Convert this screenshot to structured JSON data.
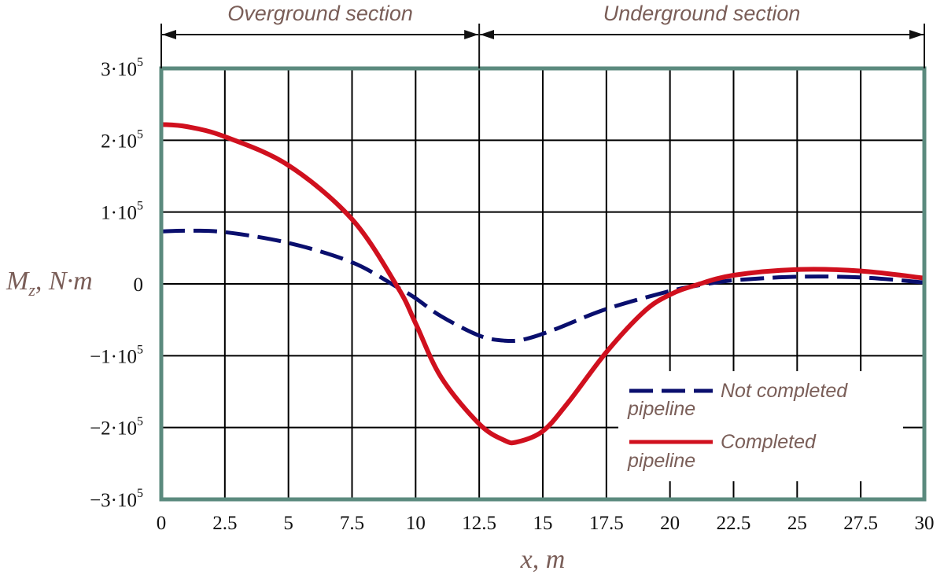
{
  "chart_data": {
    "type": "line",
    "xlabel": "x, m",
    "ylabel_main": "M",
    "ylabel_sub": "z",
    "ylabel_rest": ", N·m",
    "xlim": [
      0,
      30
    ],
    "ylim": [
      -300000,
      300000
    ],
    "grid": true,
    "x_ticks": [
      "0",
      "2.5",
      "5",
      "7.5",
      "10",
      "12.5",
      "15",
      "17.5",
      "20",
      "22.5",
      "25",
      "27.5",
      "30"
    ],
    "y_ticks": [
      {
        "value": 300000,
        "label": "3·10",
        "exp": "5"
      },
      {
        "value": 200000,
        "label": "2·10",
        "exp": "5"
      },
      {
        "value": 100000,
        "label": "1·10",
        "exp": "5"
      },
      {
        "value": 0,
        "label": "0",
        "exp": ""
      },
      {
        "value": -100000,
        "label": "−1·10",
        "exp": "5"
      },
      {
        "value": -200000,
        "label": "−2·10",
        "exp": "5"
      },
      {
        "value": -300000,
        "label": "−3·10",
        "exp": "5"
      }
    ],
    "sections": [
      {
        "label": "Overground section",
        "from": 0,
        "to": 12.5
      },
      {
        "label": "Underground section",
        "from": 12.5,
        "to": 30
      }
    ],
    "legend_position": "bottom-right",
    "series": [
      {
        "name": "Not completed pipeline",
        "legend_line1": "Not completed",
        "legend_line2": "pipeline",
        "color": "#0a0f6e",
        "style": "dashed",
        "x": [
          0,
          1,
          2.5,
          5,
          7.5,
          9.3,
          10,
          11,
          12.5,
          13.5,
          14.3,
          15.5,
          17.5,
          20,
          21.3,
          22.5,
          25,
          27.5,
          30
        ],
        "y": [
          73000,
          74000,
          72000,
          57000,
          30000,
          -5000,
          -20000,
          -45000,
          -72000,
          -79000,
          -77000,
          -63000,
          -35000,
          -10000,
          -1000,
          5000,
          10000,
          9000,
          2000
        ]
      },
      {
        "name": "Completed pipeline",
        "legend_line1": "Completed",
        "legend_line2": "pipeline",
        "color": "#d0101e",
        "style": "solid",
        "x": [
          0,
          1,
          2.5,
          5,
          7.5,
          9.3,
          10,
          11,
          12.5,
          13.5,
          14,
          15,
          16,
          17.5,
          19,
          20,
          21,
          22.5,
          25,
          27.5,
          30
        ],
        "y": [
          222000,
          219000,
          205000,
          165000,
          90000,
          -5000,
          -55000,
          -130000,
          -195000,
          -218000,
          -220000,
          -205000,
          -165000,
          -95000,
          -38000,
          -15000,
          -2000,
          12000,
          20000,
          18000,
          8000
        ]
      }
    ]
  }
}
